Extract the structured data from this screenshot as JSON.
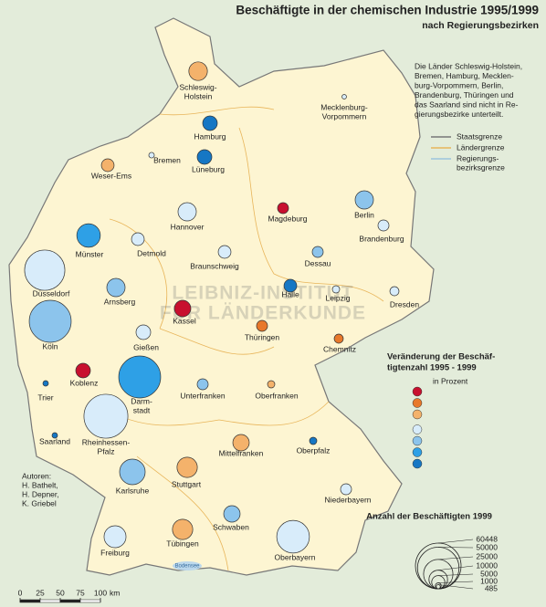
{
  "title": "Beschäftigte in der chemischen Industrie 1995/1999",
  "subtitle": "nach Regierungsbezirken",
  "note": [
    "Die Länder Schleswig-Holstein,",
    "Bremen, Hamburg, Mecklen-",
    "burg-Vorpommern, Berlin,",
    "Brandenburg, Thüringen und",
    "das Saarland sind nicht in Re-",
    "gierungsbezirke unterteilt."
  ],
  "borders": [
    {
      "label": [
        "Staatsgrenze"
      ],
      "color": "#777777"
    },
    {
      "label": [
        "Ländergrenze"
      ],
      "color": "#e8b55a"
    },
    {
      "label": [
        "Regierungs-",
        "bezirksgrenze"
      ],
      "color": "#9cc4dc"
    }
  ],
  "change_legend": {
    "title": [
      "Veränderung der Beschäf-",
      "tigtenzahl 1995 - 1999"
    ],
    "unit": "in Prozent",
    "colors": [
      "#c8102e",
      "#e8782a",
      "#f4b26b",
      "#d8ecfa",
      "#8cc4ec",
      "#2ea0e6",
      "#1677c4"
    ]
  },
  "size_legend": {
    "title": "Anzahl der Beschäftigten 1999",
    "sizes": [
      60448,
      50000,
      25000,
      10000,
      5000,
      1000,
      485
    ]
  },
  "regions": [
    {
      "name": [
        "Schleswig-",
        "Holstein"
      ],
      "employees": 10000,
      "color": "#f4b26b"
    },
    {
      "name": [
        "Mecklenburg-",
        "Vorpommern"
      ],
      "employees": 600,
      "color": "#d8ecfa"
    },
    {
      "name": [
        "Hamburg"
      ],
      "employees": 6200,
      "color": "#1677c4"
    },
    {
      "name": [
        "Bremen"
      ],
      "employees": 900,
      "color": "#d8ecfa"
    },
    {
      "name": [
        "Weser-Ems"
      ],
      "employees": 4700,
      "color": "#f4b26b"
    },
    {
      "name": [
        "Lüneburg"
      ],
      "employees": 6200,
      "color": "#1677c4"
    },
    {
      "name": [
        "Hannover"
      ],
      "employees": 9700,
      "color": "#d8ecfa"
    },
    {
      "name": [
        "Magdeburg"
      ],
      "employees": 3500,
      "color": "#c8102e"
    },
    {
      "name": [
        "Berlin"
      ],
      "employees": 9700,
      "color": "#8cc4ec"
    },
    {
      "name": [
        "Brandenburg"
      ],
      "employees": 3500,
      "color": "#d8ecfa"
    },
    {
      "name": [
        "Münster"
      ],
      "employees": 16000,
      "color": "#2ea0e6"
    },
    {
      "name": [
        "Detmold"
      ],
      "employees": 4700,
      "color": "#d8ecfa"
    },
    {
      "name": [
        "Braunschweig"
      ],
      "employees": 4700,
      "color": "#d8ecfa"
    },
    {
      "name": [
        "Dessau"
      ],
      "employees": 3500,
      "color": "#8cc4ec"
    },
    {
      "name": [
        "Düsseldorf"
      ],
      "employees": 47000,
      "color": "#d8ecfa"
    },
    {
      "name": [
        "Arnsberg"
      ],
      "employees": 9700,
      "color": "#8cc4ec"
    },
    {
      "name": [
        "Halle"
      ],
      "employees": 4700,
      "color": "#1677c4"
    },
    {
      "name": [
        "Leipzig"
      ],
      "employees": 1550,
      "color": "#d8ecfa"
    },
    {
      "name": [
        "Dresden"
      ],
      "employees": 2400,
      "color": "#d8ecfa"
    },
    {
      "name": [
        "Kassel"
      ],
      "employees": 7800,
      "color": "#c8102e"
    },
    {
      "name": [
        "Köln"
      ],
      "employees": 51000,
      "color": "#8cc4ec"
    },
    {
      "name": [
        "Gießen"
      ],
      "employees": 6200,
      "color": "#d8ecfa"
    },
    {
      "name": [
        "Thüringen"
      ],
      "employees": 3500,
      "color": "#e8782a"
    },
    {
      "name": [
        "Chemnitz"
      ],
      "employees": 2400,
      "color": "#e8782a"
    },
    {
      "name": [
        "Koblenz"
      ],
      "employees": 6200,
      "color": "#c8102e"
    },
    {
      "name": [
        "Trier"
      ],
      "employees": 870,
      "color": "#1677c4"
    },
    {
      "name": [
        "Darm-",
        "stadt"
      ],
      "employees": 51000,
      "color": "#2ea0e6"
    },
    {
      "name": [
        "Unterfranken"
      ],
      "employees": 3500,
      "color": "#8cc4ec"
    },
    {
      "name": [
        "Oberfranken"
      ],
      "employees": 1550,
      "color": "#f4b26b"
    },
    {
      "name": [
        "Saarland"
      ],
      "employees": 870,
      "color": "#1677c4"
    },
    {
      "name": [
        "Rheinhessen-",
        "Pfalz"
      ],
      "employees": 56000,
      "color": "#d8ecfa"
    },
    {
      "name": [
        "Mittelfranken"
      ],
      "employees": 7800,
      "color": "#f4b26b"
    },
    {
      "name": [
        "Oberpfalz"
      ],
      "employees": 1550,
      "color": "#1677c4"
    },
    {
      "name": [
        "Karlsruhe"
      ],
      "employees": 19000,
      "color": "#8cc4ec"
    },
    {
      "name": [
        "Stuttgart"
      ],
      "employees": 12000,
      "color": "#f4b26b"
    },
    {
      "name": [
        "Niederbayern"
      ],
      "employees": 3500,
      "color": "#d8ecfa"
    },
    {
      "name": [
        "Schwaben"
      ],
      "employees": 7800,
      "color": "#8cc4ec"
    },
    {
      "name": [
        "Tübingen"
      ],
      "employees": 12000,
      "color": "#f4b26b"
    },
    {
      "name": [
        "Freiburg"
      ],
      "employees": 14000,
      "color": "#d8ecfa"
    },
    {
      "name": [
        "Oberbayern"
      ],
      "employees": 31000,
      "color": "#d8ecfa"
    }
  ],
  "authors": {
    "label": "Autoren:",
    "names": [
      "H. Bathelt,",
      "H. Depner,",
      "K. Griebel"
    ]
  },
  "scale": {
    "ticks": [
      0,
      25,
      50,
      75,
      100
    ],
    "unit": "km"
  },
  "water": "Bodensee",
  "watermark": [
    "LEIBNIZ-INSTITUT",
    "FÜR LÄNDERKUNDE"
  ]
}
